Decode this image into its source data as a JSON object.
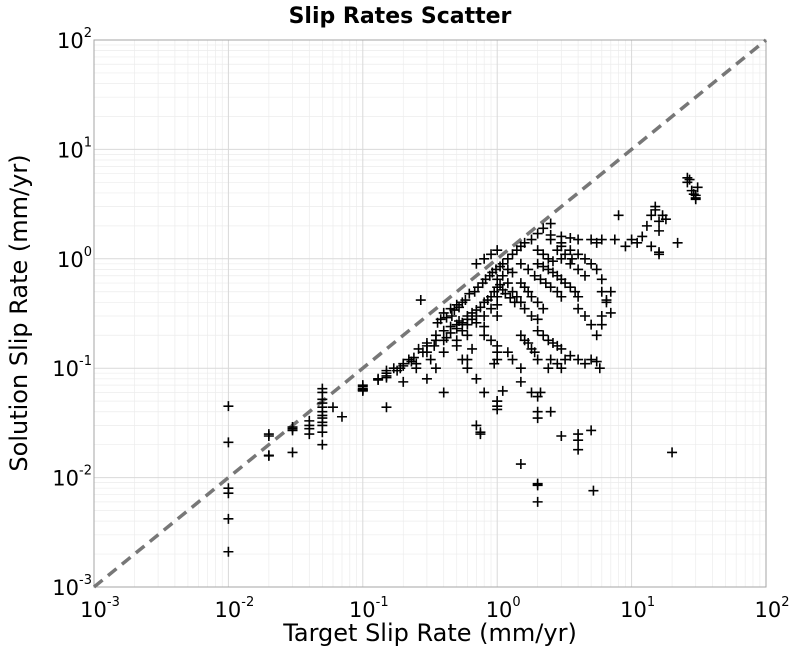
{
  "chart_data": {
    "type": "scatter",
    "title": "Slip Rates Scatter",
    "xlabel": "Target Slip Rate (mm/yr)",
    "ylabel": "Solution Slip Rate (mm/yr)",
    "xscale": "log",
    "yscale": "log",
    "xlim": [
      0.001,
      100
    ],
    "ylim": [
      0.001,
      100
    ],
    "grid": true,
    "marker": "plus",
    "marker_color": "#000000",
    "reference_line": {
      "style": "dashed",
      "color": "#777777",
      "from": [
        0.001,
        0.001
      ],
      "to": [
        100,
        100
      ]
    },
    "x_ticks": [
      {
        "base": "10",
        "exp": "-3",
        "value": 0.001
      },
      {
        "base": "10",
        "exp": "-2",
        "value": 0.01
      },
      {
        "base": "10",
        "exp": "-1",
        "value": 0.1
      },
      {
        "base": "10",
        "exp": "0",
        "value": 1
      },
      {
        "base": "10",
        "exp": "1",
        "value": 10
      },
      {
        "base": "10",
        "exp": "2",
        "value": 100
      }
    ],
    "y_ticks": [
      {
        "base": "10",
        "exp": "-3",
        "value": 0.001
      },
      {
        "base": "10",
        "exp": "-2",
        "value": 0.01
      },
      {
        "base": "10",
        "exp": "-1",
        "value": 0.1
      },
      {
        "base": "10",
        "exp": "0",
        "value": 1
      },
      {
        "base": "10",
        "exp": "1",
        "value": 10
      },
      {
        "base": "10",
        "exp": "2",
        "value": 100
      }
    ],
    "points": [
      [
        0.01,
        0.045
      ],
      [
        0.01,
        0.021
      ],
      [
        0.01,
        0.008
      ],
      [
        0.01,
        0.0072
      ],
      [
        0.01,
        0.0042
      ],
      [
        0.01,
        0.0021
      ],
      [
        0.02,
        0.016
      ],
      [
        0.02,
        0.0158
      ],
      [
        0.02,
        0.024
      ],
      [
        0.02,
        0.025
      ],
      [
        0.03,
        0.028
      ],
      [
        0.03,
        0.029
      ],
      [
        0.03,
        0.027
      ],
      [
        0.03,
        0.017
      ],
      [
        0.04,
        0.03
      ],
      [
        0.04,
        0.025
      ],
      [
        0.04,
        0.033
      ],
      [
        0.04,
        0.028
      ],
      [
        0.05,
        0.065
      ],
      [
        0.05,
        0.06
      ],
      [
        0.05,
        0.052
      ],
      [
        0.05,
        0.048
      ],
      [
        0.05,
        0.044
      ],
      [
        0.05,
        0.04
      ],
      [
        0.05,
        0.037
      ],
      [
        0.05,
        0.035
      ],
      [
        0.05,
        0.032
      ],
      [
        0.05,
        0.03
      ],
      [
        0.05,
        0.026
      ],
      [
        0.05,
        0.02
      ],
      [
        0.06,
        0.044
      ],
      [
        0.07,
        0.036
      ],
      [
        0.1,
        0.065
      ],
      [
        0.1,
        0.064
      ],
      [
        0.1,
        0.063
      ],
      [
        0.1,
        0.062
      ],
      [
        0.1,
        0.068
      ],
      [
        0.1,
        0.07
      ],
      [
        0.13,
        0.078
      ],
      [
        0.13,
        0.08
      ],
      [
        0.15,
        0.082
      ],
      [
        0.15,
        0.085
      ],
      [
        0.15,
        0.09
      ],
      [
        0.15,
        0.095
      ],
      [
        0.15,
        0.044
      ],
      [
        0.17,
        0.1
      ],
      [
        0.18,
        0.095
      ],
      [
        0.2,
        0.11
      ],
      [
        0.2,
        0.105
      ],
      [
        0.19,
        0.1
      ],
      [
        0.2,
        0.075
      ],
      [
        0.22,
        0.12
      ],
      [
        0.24,
        0.125
      ],
      [
        0.23,
        0.115
      ],
      [
        0.25,
        0.11
      ],
      [
        0.26,
        0.15
      ],
      [
        0.28,
        0.14
      ],
      [
        0.3,
        0.16
      ],
      [
        0.3,
        0.17
      ],
      [
        0.32,
        0.12
      ],
      [
        0.3,
        0.14
      ],
      [
        0.27,
        0.42
      ],
      [
        0.35,
        0.2
      ],
      [
        0.35,
        0.18
      ],
      [
        0.34,
        0.16
      ],
      [
        0.4,
        0.22
      ],
      [
        0.4,
        0.18
      ],
      [
        0.4,
        0.14
      ],
      [
        0.42,
        0.19
      ],
      [
        0.45,
        0.24
      ],
      [
        0.45,
        0.21
      ],
      [
        0.5,
        0.23
      ],
      [
        0.5,
        0.25
      ],
      [
        0.5,
        0.18
      ],
      [
        0.5,
        0.16
      ],
      [
        0.52,
        0.27
      ],
      [
        0.55,
        0.26
      ],
      [
        0.55,
        0.22
      ],
      [
        0.6,
        0.3
      ],
      [
        0.6,
        0.28
      ],
      [
        0.6,
        0.25
      ],
      [
        0.6,
        0.2
      ],
      [
        0.65,
        0.32
      ],
      [
        0.65,
        0.28
      ],
      [
        0.7,
        0.34
      ],
      [
        0.7,
        0.3
      ],
      [
        0.7,
        0.26
      ],
      [
        0.75,
        0.36
      ],
      [
        0.8,
        0.4
      ],
      [
        0.8,
        0.3
      ],
      [
        0.8,
        0.24
      ],
      [
        0.85,
        0.42
      ],
      [
        0.9,
        0.45
      ],
      [
        0.9,
        0.35
      ],
      [
        0.95,
        0.5
      ],
      [
        1.0,
        0.55
      ],
      [
        1.0,
        0.45
      ],
      [
        1.0,
        0.38
      ],
      [
        1.0,
        0.3
      ],
      [
        0.55,
        0.4
      ],
      [
        0.5,
        0.38
      ],
      [
        0.45,
        0.35
      ],
      [
        0.4,
        0.32
      ],
      [
        0.38,
        0.28
      ],
      [
        0.36,
        0.26
      ],
      [
        0.42,
        0.29
      ],
      [
        0.46,
        0.3
      ],
      [
        0.48,
        0.34
      ],
      [
        0.52,
        0.36
      ],
      [
        0.58,
        0.42
      ],
      [
        0.62,
        0.48
      ],
      [
        0.68,
        0.5
      ],
      [
        0.72,
        0.55
      ],
      [
        0.78,
        0.6
      ],
      [
        0.82,
        0.65
      ],
      [
        0.88,
        0.7
      ],
      [
        0.92,
        0.75
      ],
      [
        0.98,
        0.8
      ],
      [
        1.05,
        0.85
      ],
      [
        1.1,
        0.9
      ],
      [
        1.2,
        1.0
      ],
      [
        1.3,
        1.1
      ],
      [
        1.4,
        1.2
      ],
      [
        1.5,
        1.3
      ],
      [
        1.6,
        1.4
      ],
      [
        1.8,
        1.5
      ],
      [
        2.0,
        1.7
      ],
      [
        2.2,
        1.9
      ],
      [
        2.5,
        2.1
      ],
      [
        0.7,
        0.9
      ],
      [
        0.8,
        1.0
      ],
      [
        0.9,
        1.1
      ],
      [
        1.0,
        1.2
      ],
      [
        1.1,
        0.7
      ],
      [
        1.2,
        0.6
      ],
      [
        1.3,
        0.5
      ],
      [
        1.4,
        0.45
      ],
      [
        1.5,
        0.4
      ],
      [
        1.6,
        0.35
      ],
      [
        1.8,
        0.3
      ],
      [
        2.0,
        0.28
      ],
      [
        1.2,
        0.8
      ],
      [
        1.3,
        0.75
      ],
      [
        1.5,
        0.9
      ],
      [
        1.7,
        0.8
      ],
      [
        1.9,
        0.7
      ],
      [
        2.1,
        0.65
      ],
      [
        2.3,
        0.6
      ],
      [
        2.5,
        0.55
      ],
      [
        2.8,
        0.5
      ],
      [
        3.0,
        0.45
      ],
      [
        1.0,
        0.65
      ],
      [
        1.05,
        0.58
      ],
      [
        1.1,
        0.52
      ],
      [
        1.15,
        0.48
      ],
      [
        1.25,
        0.44
      ],
      [
        1.35,
        0.4
      ],
      [
        1.5,
        0.6
      ],
      [
        1.6,
        0.55
      ],
      [
        1.7,
        0.5
      ],
      [
        1.8,
        0.45
      ],
      [
        2.0,
        0.4
      ],
      [
        2.2,
        0.35
      ],
      [
        2.0,
        0.9
      ],
      [
        2.2,
        0.85
      ],
      [
        2.4,
        0.8
      ],
      [
        2.6,
        0.75
      ],
      [
        2.8,
        0.7
      ],
      [
        3.0,
        0.65
      ],
      [
        3.2,
        0.6
      ],
      [
        3.5,
        0.55
      ],
      [
        3.8,
        0.5
      ],
      [
        4.0,
        0.45
      ],
      [
        2.0,
        1.2
      ],
      [
        2.2,
        1.1
      ],
      [
        2.4,
        1.0
      ],
      [
        2.6,
        0.95
      ],
      [
        3.0,
        1.0
      ],
      [
        3.5,
        0.9
      ],
      [
        4.0,
        0.8
      ],
      [
        4.5,
        0.7
      ],
      [
        3.0,
        1.3
      ],
      [
        3.5,
        1.2
      ],
      [
        4.0,
        1.1
      ],
      [
        4.5,
        1.0
      ],
      [
        5.0,
        0.9
      ],
      [
        5.5,
        0.8
      ],
      [
        2.5,
        1.5
      ],
      [
        3.0,
        1.4
      ],
      [
        4.0,
        1.5
      ],
      [
        5.0,
        1.5
      ],
      [
        5.5,
        1.4
      ],
      [
        6.0,
        1.5
      ],
      [
        2.0,
        0.22
      ],
      [
        2.2,
        0.2
      ],
      [
        2.4,
        0.18
      ],
      [
        2.6,
        0.17
      ],
      [
        2.8,
        0.16
      ],
      [
        3.0,
        0.15
      ],
      [
        1.5,
        0.2
      ],
      [
        1.6,
        0.18
      ],
      [
        1.7,
        0.17
      ],
      [
        1.8,
        0.15
      ],
      [
        1.9,
        0.14
      ],
      [
        2.0,
        0.12
      ],
      [
        0.8,
        0.2
      ],
      [
        0.9,
        0.18
      ],
      [
        1.0,
        0.16
      ],
      [
        1.0,
        0.14
      ],
      [
        1.0,
        0.12
      ],
      [
        0.95,
        0.11
      ],
      [
        0.6,
        0.12
      ],
      [
        0.6,
        0.1
      ],
      [
        0.7,
        0.08
      ],
      [
        0.8,
        0.06
      ],
      [
        1.0,
        0.05
      ],
      [
        1.1,
        0.062
      ],
      [
        0.4,
        0.06
      ],
      [
        0.35,
        0.1
      ],
      [
        0.3,
        0.08
      ],
      [
        0.25,
        0.1
      ],
      [
        0.55,
        0.12
      ],
      [
        0.65,
        0.15
      ],
      [
        0.7,
        0.03
      ],
      [
        0.75,
        0.026
      ],
      [
        0.75,
        0.025
      ],
      [
        1.0,
        0.042
      ],
      [
        1.0,
        0.045
      ],
      [
        1.0,
        0.05
      ],
      [
        1.5,
        0.075
      ],
      [
        1.5,
        0.1
      ],
      [
        1.3,
        0.12
      ],
      [
        1.2,
        0.14
      ],
      [
        1.8,
        0.06
      ],
      [
        2.0,
        0.055
      ],
      [
        2.0,
        0.04
      ],
      [
        2.0,
        0.035
      ],
      [
        2.1,
        0.06
      ],
      [
        2.4,
        0.1
      ],
      [
        2.5,
        0.12
      ],
      [
        2.8,
        0.11
      ],
      [
        3.0,
        0.1
      ],
      [
        3.2,
        0.12
      ],
      [
        3.5,
        0.13
      ],
      [
        4.0,
        0.12
      ],
      [
        4.5,
        0.11
      ],
      [
        5.0,
        0.12
      ],
      [
        5.5,
        0.115
      ],
      [
        5.8,
        0.1
      ],
      [
        5.5,
        0.2
      ],
      [
        5.0,
        0.25
      ],
      [
        4.5,
        0.3
      ],
      [
        4.0,
        0.35
      ],
      [
        2.5,
        0.04
      ],
      [
        3.0,
        0.024
      ],
      [
        4.0,
        0.025
      ],
      [
        4.0,
        0.022
      ],
      [
        4.0,
        0.018
      ],
      [
        5.0,
        0.027
      ],
      [
        5.2,
        0.0076
      ],
      [
        2.0,
        0.0088
      ],
      [
        2.0,
        0.0085
      ],
      [
        2.0,
        0.006
      ],
      [
        1.5,
        0.0133
      ],
      [
        6.0,
        0.25
      ],
      [
        6.0,
        0.3
      ],
      [
        7.0,
        0.32
      ],
      [
        6.5,
        0.42
      ],
      [
        6.0,
        0.5
      ],
      [
        6.0,
        0.65
      ],
      [
        7.0,
        0.5
      ],
      [
        6.5,
        0.4
      ],
      [
        8.0,
        2.5
      ],
      [
        10.0,
        1.5
      ],
      [
        11.0,
        1.4
      ],
      [
        12.0,
        1.6
      ],
      [
        13.0,
        2.0
      ],
      [
        14.0,
        2.5
      ],
      [
        15.0,
        3.0
      ],
      [
        15.0,
        2.8
      ],
      [
        16.0,
        2.2
      ],
      [
        16.0,
        1.8
      ],
      [
        17.0,
        2.5
      ],
      [
        18.0,
        2.3
      ],
      [
        16.0,
        1.15
      ],
      [
        16.0,
        1.1
      ],
      [
        14.0,
        1.3
      ],
      [
        20.0,
        0.017
      ],
      [
        22.0,
        1.4
      ],
      [
        26.0,
        5.5
      ],
      [
        26.0,
        5.0
      ],
      [
        27.0,
        5.3
      ],
      [
        28.0,
        4.2
      ],
      [
        30.0,
        3.8
      ],
      [
        30.0,
        3.6
      ],
      [
        30.0,
        3.5
      ],
      [
        31.0,
        4.5
      ],
      [
        29.0,
        3.9
      ],
      [
        7.5,
        1.5
      ],
      [
        9.0,
        1.3
      ],
      [
        3.0,
        1.6
      ],
      [
        3.5,
        1.55
      ],
      [
        2.5,
        1.65
      ],
      [
        2.8,
        1.2
      ],
      [
        3.2,
        1.1
      ],
      [
        3.6,
        1.0
      ]
    ]
  }
}
